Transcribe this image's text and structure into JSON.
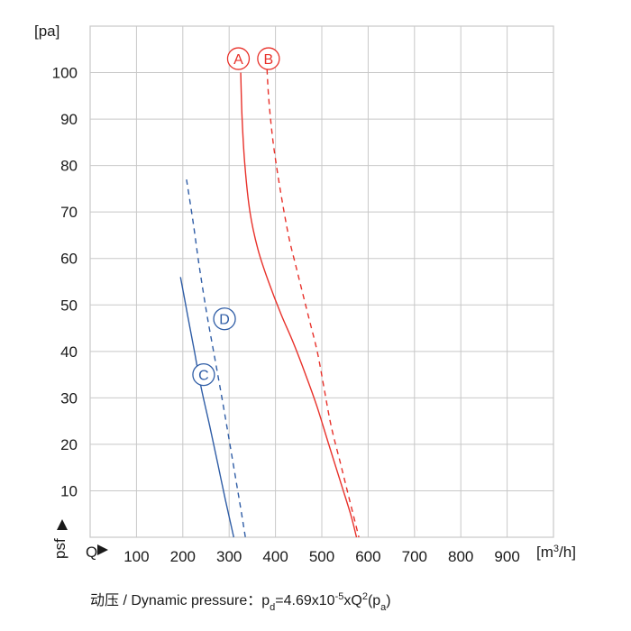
{
  "chart_data": {
    "type": "line",
    "y_unit": "[pa]",
    "x_unit_base": "[m",
    "x_unit_sup": "3",
    "x_unit_tail": "/h]",
    "x_axis_marker": "Q",
    "y_axis_marker": "psf",
    "xlim": [
      0,
      1000
    ],
    "ylim": [
      0,
      110
    ],
    "x_ticks": [
      100,
      200,
      300,
      400,
      500,
      600,
      700,
      800,
      900
    ],
    "y_ticks": [
      10,
      20,
      30,
      40,
      50,
      60,
      70,
      80,
      90,
      100
    ],
    "grid": true,
    "series": [
      {
        "name": "A",
        "color": "#e8312a",
        "dash": false,
        "badge_at": [
          320,
          103
        ],
        "points": [
          [
            325,
            100
          ],
          [
            328,
            90
          ],
          [
            334,
            80
          ],
          [
            345,
            70
          ],
          [
            362,
            62
          ],
          [
            385,
            55
          ],
          [
            412,
            48
          ],
          [
            438,
            42
          ],
          [
            465,
            35
          ],
          [
            490,
            28
          ],
          [
            515,
            20
          ],
          [
            540,
            12
          ],
          [
            562,
            5
          ],
          [
            575,
            0
          ]
        ]
      },
      {
        "name": "B",
        "color": "#e8312a",
        "dash": true,
        "badge_at": [
          385,
          103
        ],
        "points": [
          [
            380,
            105
          ],
          [
            385,
            95
          ],
          [
            395,
            85
          ],
          [
            410,
            75
          ],
          [
            428,
            65
          ],
          [
            445,
            58
          ],
          [
            470,
            48
          ],
          [
            490,
            40
          ],
          [
            505,
            32
          ],
          [
            520,
            24
          ],
          [
            540,
            16
          ],
          [
            560,
            8
          ],
          [
            580,
            0
          ]
        ]
      },
      {
        "name": "C",
        "color": "#2f5da6",
        "dash": false,
        "badge_at": [
          245,
          35
        ],
        "points": [
          [
            195,
            56
          ],
          [
            210,
            48
          ],
          [
            225,
            40
          ],
          [
            240,
            32
          ],
          [
            258,
            24
          ],
          [
            275,
            16
          ],
          [
            292,
            8
          ],
          [
            310,
            0
          ]
        ]
      },
      {
        "name": "D",
        "color": "#2f5da6",
        "dash": true,
        "badge_at": [
          290,
          47
        ],
        "points": [
          [
            208,
            77
          ],
          [
            222,
            68
          ],
          [
            236,
            58
          ],
          [
            252,
            48
          ],
          [
            270,
            38
          ],
          [
            288,
            28
          ],
          [
            305,
            18
          ],
          [
            322,
            8
          ],
          [
            335,
            0
          ]
        ]
      }
    ]
  },
  "caption": {
    "prefix": "动压 / Dynamic pressure：p",
    "sub_d": "d",
    "mid": "=4.69x10",
    "sup": "-5",
    "mid2": "xQ",
    "sup2": "2",
    "open": "(p",
    "sub_a": "a",
    "close": ")"
  }
}
